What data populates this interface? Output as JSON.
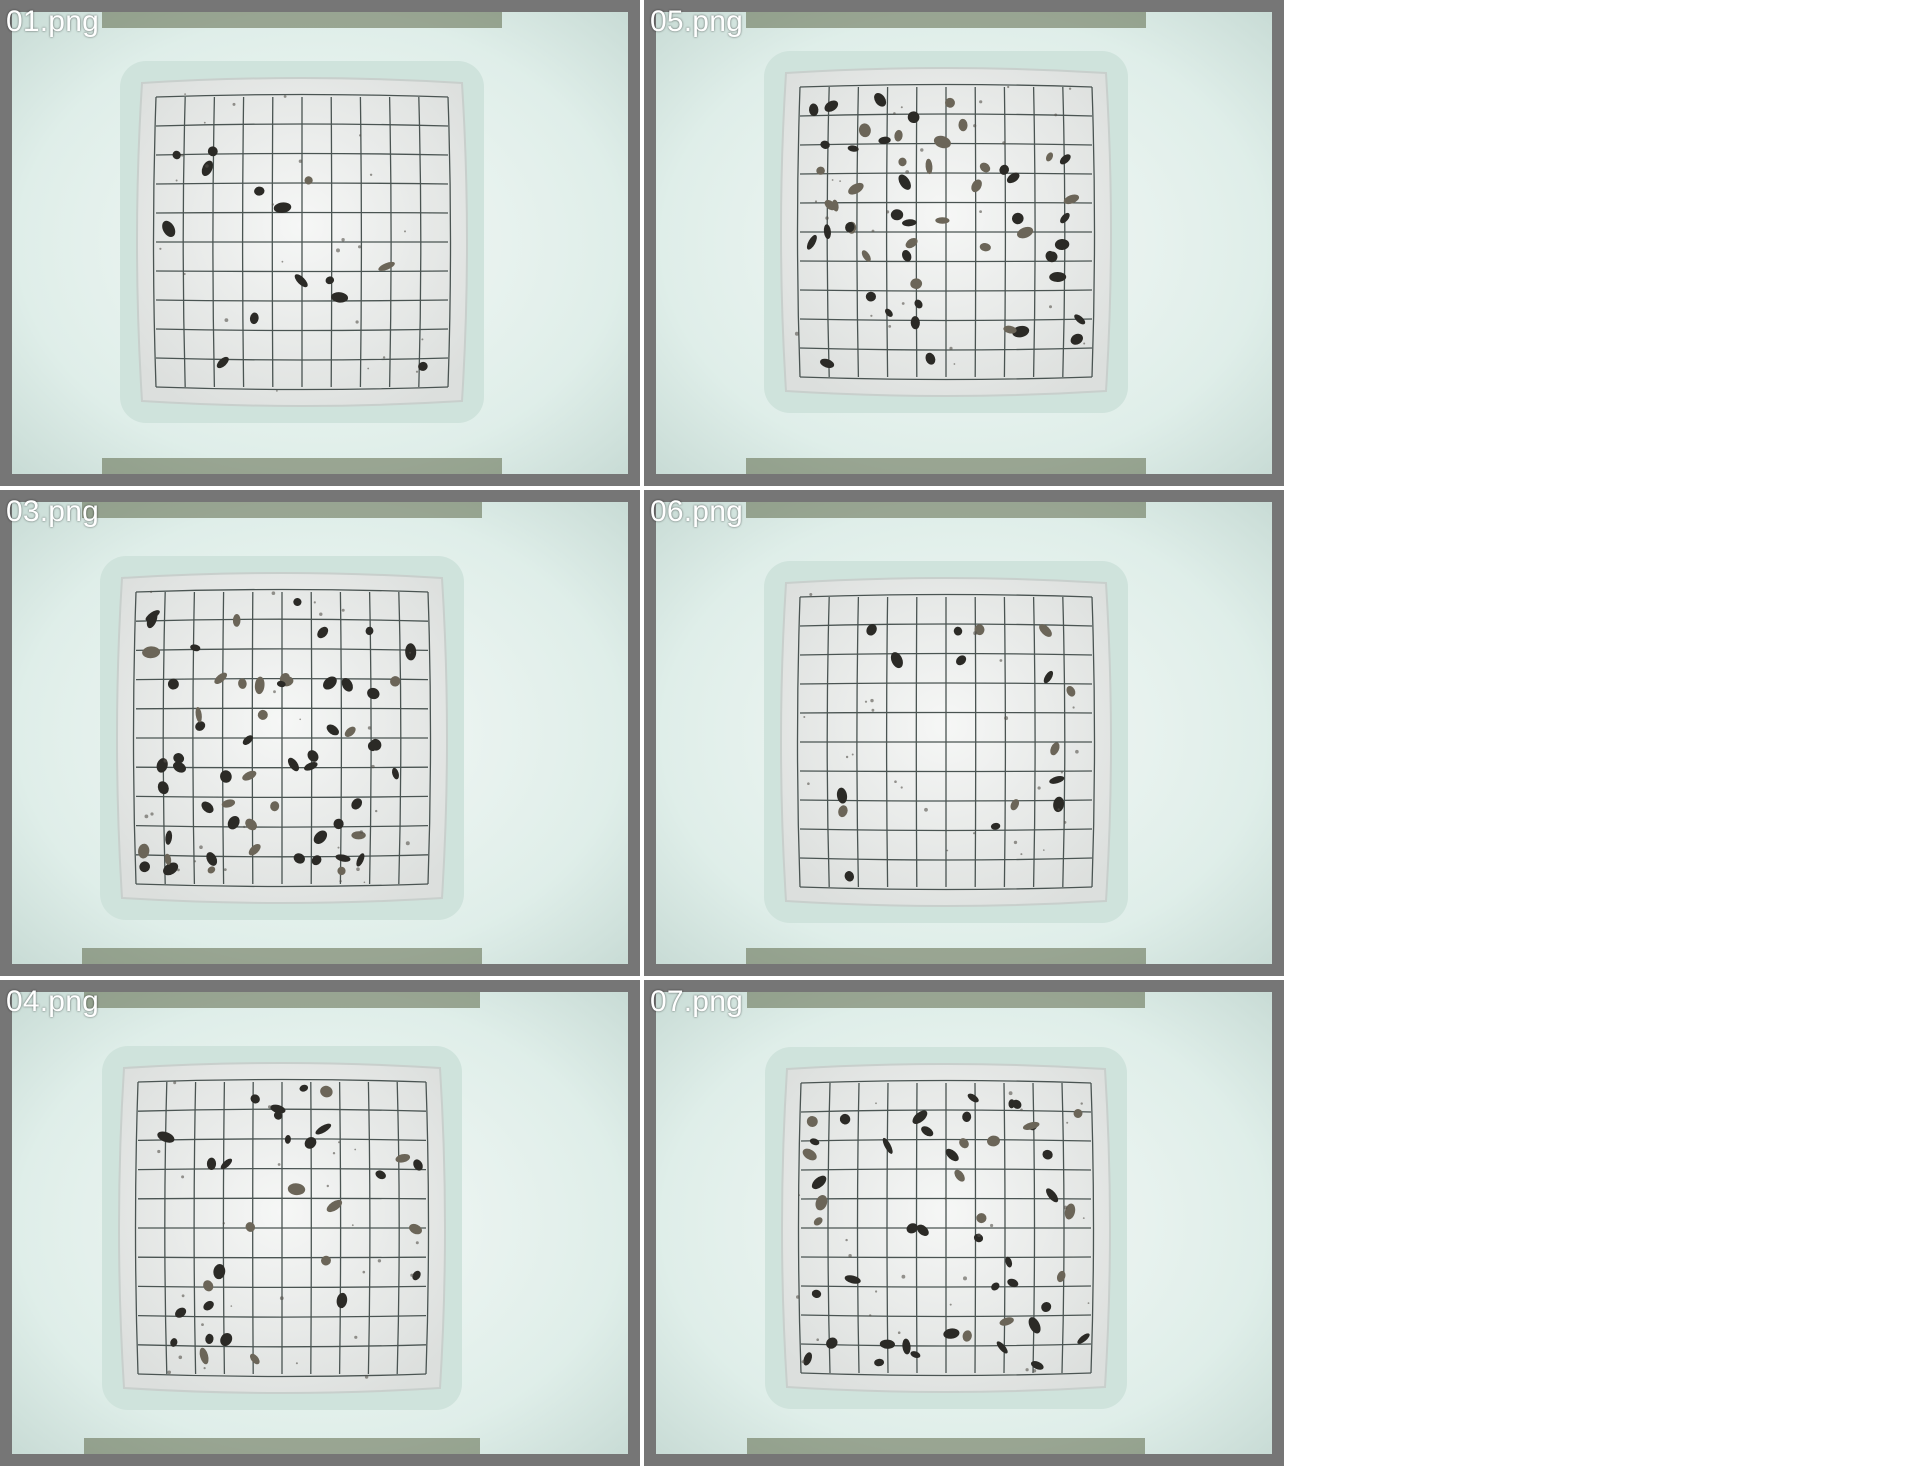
{
  "images": [
    {
      "caption": "01.png"
    },
    {
      "caption": "05.png"
    },
    {
      "caption": "03.png"
    },
    {
      "caption": "06.png"
    },
    {
      "caption": "04.png"
    },
    {
      "caption": "07.png"
    }
  ],
  "colors": {
    "frame": "#767676",
    "bucket_wall": "#dfeee9",
    "sticky_card": "#ebedec",
    "grid_line": "#4a5452",
    "insect": "#2b2a26"
  },
  "icons": [
    "photo-thumbnail"
  ]
}
